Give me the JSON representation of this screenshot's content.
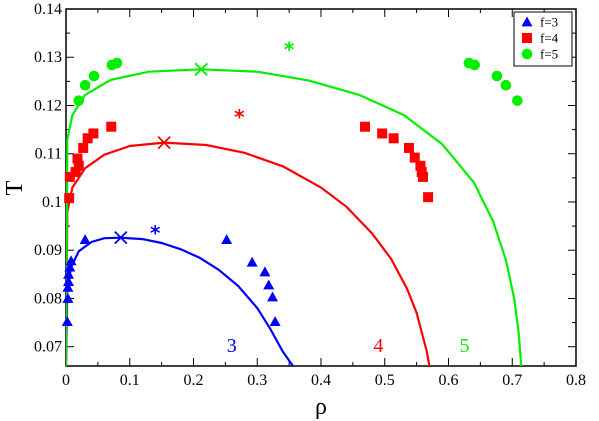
{
  "chart_data": {
    "type": "scatter",
    "xlabel": "ρ",
    "ylabel": "T",
    "xlim": [
      0,
      0.8
    ],
    "ylim": [
      0.066,
      0.14
    ],
    "x_ticks": [
      "0",
      "0.1",
      "0.2",
      "0.3",
      "0.4",
      "0.5",
      "0.6",
      "0.7",
      "0.8"
    ],
    "y_ticks": [
      "0.07",
      "0.08",
      "0.09",
      "0.1",
      "0.11",
      "0.12",
      "0.13",
      "0.14"
    ],
    "x_tick_values": [
      0,
      0.1,
      0.2,
      0.3,
      0.4,
      0.5,
      0.6,
      0.7,
      0.8
    ],
    "y_tick_values": [
      0.07,
      0.08,
      0.09,
      0.1,
      0.11,
      0.12,
      0.13,
      0.14
    ],
    "grid": false,
    "legend_position": "top-right",
    "series": [
      {
        "name": "f=3",
        "marker": "triangle",
        "color": "#0000ff",
        "points": [
          [
            0.002,
            0.0752
          ],
          [
            0.003,
            0.08
          ],
          [
            0.003,
            0.0823
          ],
          [
            0.004,
            0.0835
          ],
          [
            0.004,
            0.085
          ],
          [
            0.006,
            0.0865
          ],
          [
            0.008,
            0.0878
          ],
          [
            0.03,
            0.0922
          ],
          [
            0.252,
            0.0922
          ],
          [
            0.292,
            0.0875
          ],
          [
            0.312,
            0.0855
          ],
          [
            0.318,
            0.0828
          ],
          [
            0.324,
            0.0803
          ],
          [
            0.328,
            0.0752
          ]
        ],
        "critical_point": [
          0.086,
          0.0926
        ],
        "starred_point": [
          0.14,
          0.094
        ],
        "curve_label": "3",
        "coexistence_curve": [
          [
            0.0,
            0.066
          ],
          [
            0.002,
            0.0815
          ],
          [
            0.008,
            0.0865
          ],
          [
            0.02,
            0.0898
          ],
          [
            0.04,
            0.0917
          ],
          [
            0.06,
            0.0925
          ],
          [
            0.086,
            0.0926
          ],
          [
            0.12,
            0.0923
          ],
          [
            0.15,
            0.0915
          ],
          [
            0.18,
            0.0902
          ],
          [
            0.21,
            0.0884
          ],
          [
            0.24,
            0.0859
          ],
          [
            0.27,
            0.0826
          ],
          [
            0.3,
            0.078
          ],
          [
            0.32,
            0.0738
          ],
          [
            0.34,
            0.069
          ],
          [
            0.356,
            0.066
          ]
        ]
      },
      {
        "name": "f=4",
        "marker": "square",
        "color": "#ff0000",
        "points": [
          [
            0.005,
            0.1008
          ],
          [
            0.006,
            0.1052
          ],
          [
            0.015,
            0.1062
          ],
          [
            0.018,
            0.109
          ],
          [
            0.02,
            0.1075
          ],
          [
            0.027,
            0.1112
          ],
          [
            0.034,
            0.1132
          ],
          [
            0.043,
            0.1142
          ],
          [
            0.071,
            0.1156
          ],
          [
            0.469,
            0.1156
          ],
          [
            0.496,
            0.1142
          ],
          [
            0.514,
            0.1132
          ],
          [
            0.538,
            0.1112
          ],
          [
            0.547,
            0.1092
          ],
          [
            0.556,
            0.1075
          ],
          [
            0.558,
            0.1062
          ],
          [
            0.56,
            0.1052
          ],
          [
            0.568,
            0.101
          ]
        ],
        "critical_point": [
          0.154,
          0.1123
        ],
        "starred_point": [
          0.272,
          0.118
        ],
        "curve_label": "4",
        "coexistence_curve": [
          [
            0.0,
            0.066
          ],
          [
            0.002,
            0.098
          ],
          [
            0.01,
            0.103
          ],
          [
            0.03,
            0.107
          ],
          [
            0.06,
            0.1098
          ],
          [
            0.1,
            0.1116
          ],
          [
            0.154,
            0.1123
          ],
          [
            0.22,
            0.1118
          ],
          [
            0.28,
            0.1102
          ],
          [
            0.34,
            0.1074
          ],
          [
            0.4,
            0.103
          ],
          [
            0.44,
            0.099
          ],
          [
            0.48,
            0.0935
          ],
          [
            0.51,
            0.0882
          ],
          [
            0.535,
            0.082
          ],
          [
            0.55,
            0.077
          ],
          [
            0.56,
            0.072
          ],
          [
            0.566,
            0.069
          ],
          [
            0.57,
            0.066
          ]
        ]
      },
      {
        "name": "f=5",
        "marker": "circle",
        "color": "#00ee00",
        "points": [
          [
            0.02,
            0.121
          ],
          [
            0.03,
            0.1242
          ],
          [
            0.044,
            0.1261
          ],
          [
            0.072,
            0.1284
          ],
          [
            0.08,
            0.1288
          ],
          [
            0.632,
            0.1288
          ],
          [
            0.641,
            0.1284
          ],
          [
            0.676,
            0.1261
          ],
          [
            0.69,
            0.1242
          ],
          [
            0.708,
            0.121
          ]
        ],
        "critical_point": [
          0.212,
          0.1275
        ],
        "starred_point": [
          0.35,
          0.132
        ],
        "curve_label": "5",
        "coexistence_curve": [
          [
            0.0,
            0.066
          ],
          [
            0.002,
            0.113
          ],
          [
            0.01,
            0.118
          ],
          [
            0.03,
            0.1222
          ],
          [
            0.07,
            0.1253
          ],
          [
            0.13,
            0.127
          ],
          [
            0.212,
            0.1275
          ],
          [
            0.3,
            0.127
          ],
          [
            0.38,
            0.1252
          ],
          [
            0.46,
            0.1222
          ],
          [
            0.53,
            0.118
          ],
          [
            0.59,
            0.112
          ],
          [
            0.64,
            0.104
          ],
          [
            0.67,
            0.096
          ],
          [
            0.69,
            0.088
          ],
          [
            0.703,
            0.08
          ],
          [
            0.71,
            0.073
          ],
          [
            0.713,
            0.068
          ],
          [
            0.714,
            0.066
          ]
        ]
      }
    ]
  }
}
